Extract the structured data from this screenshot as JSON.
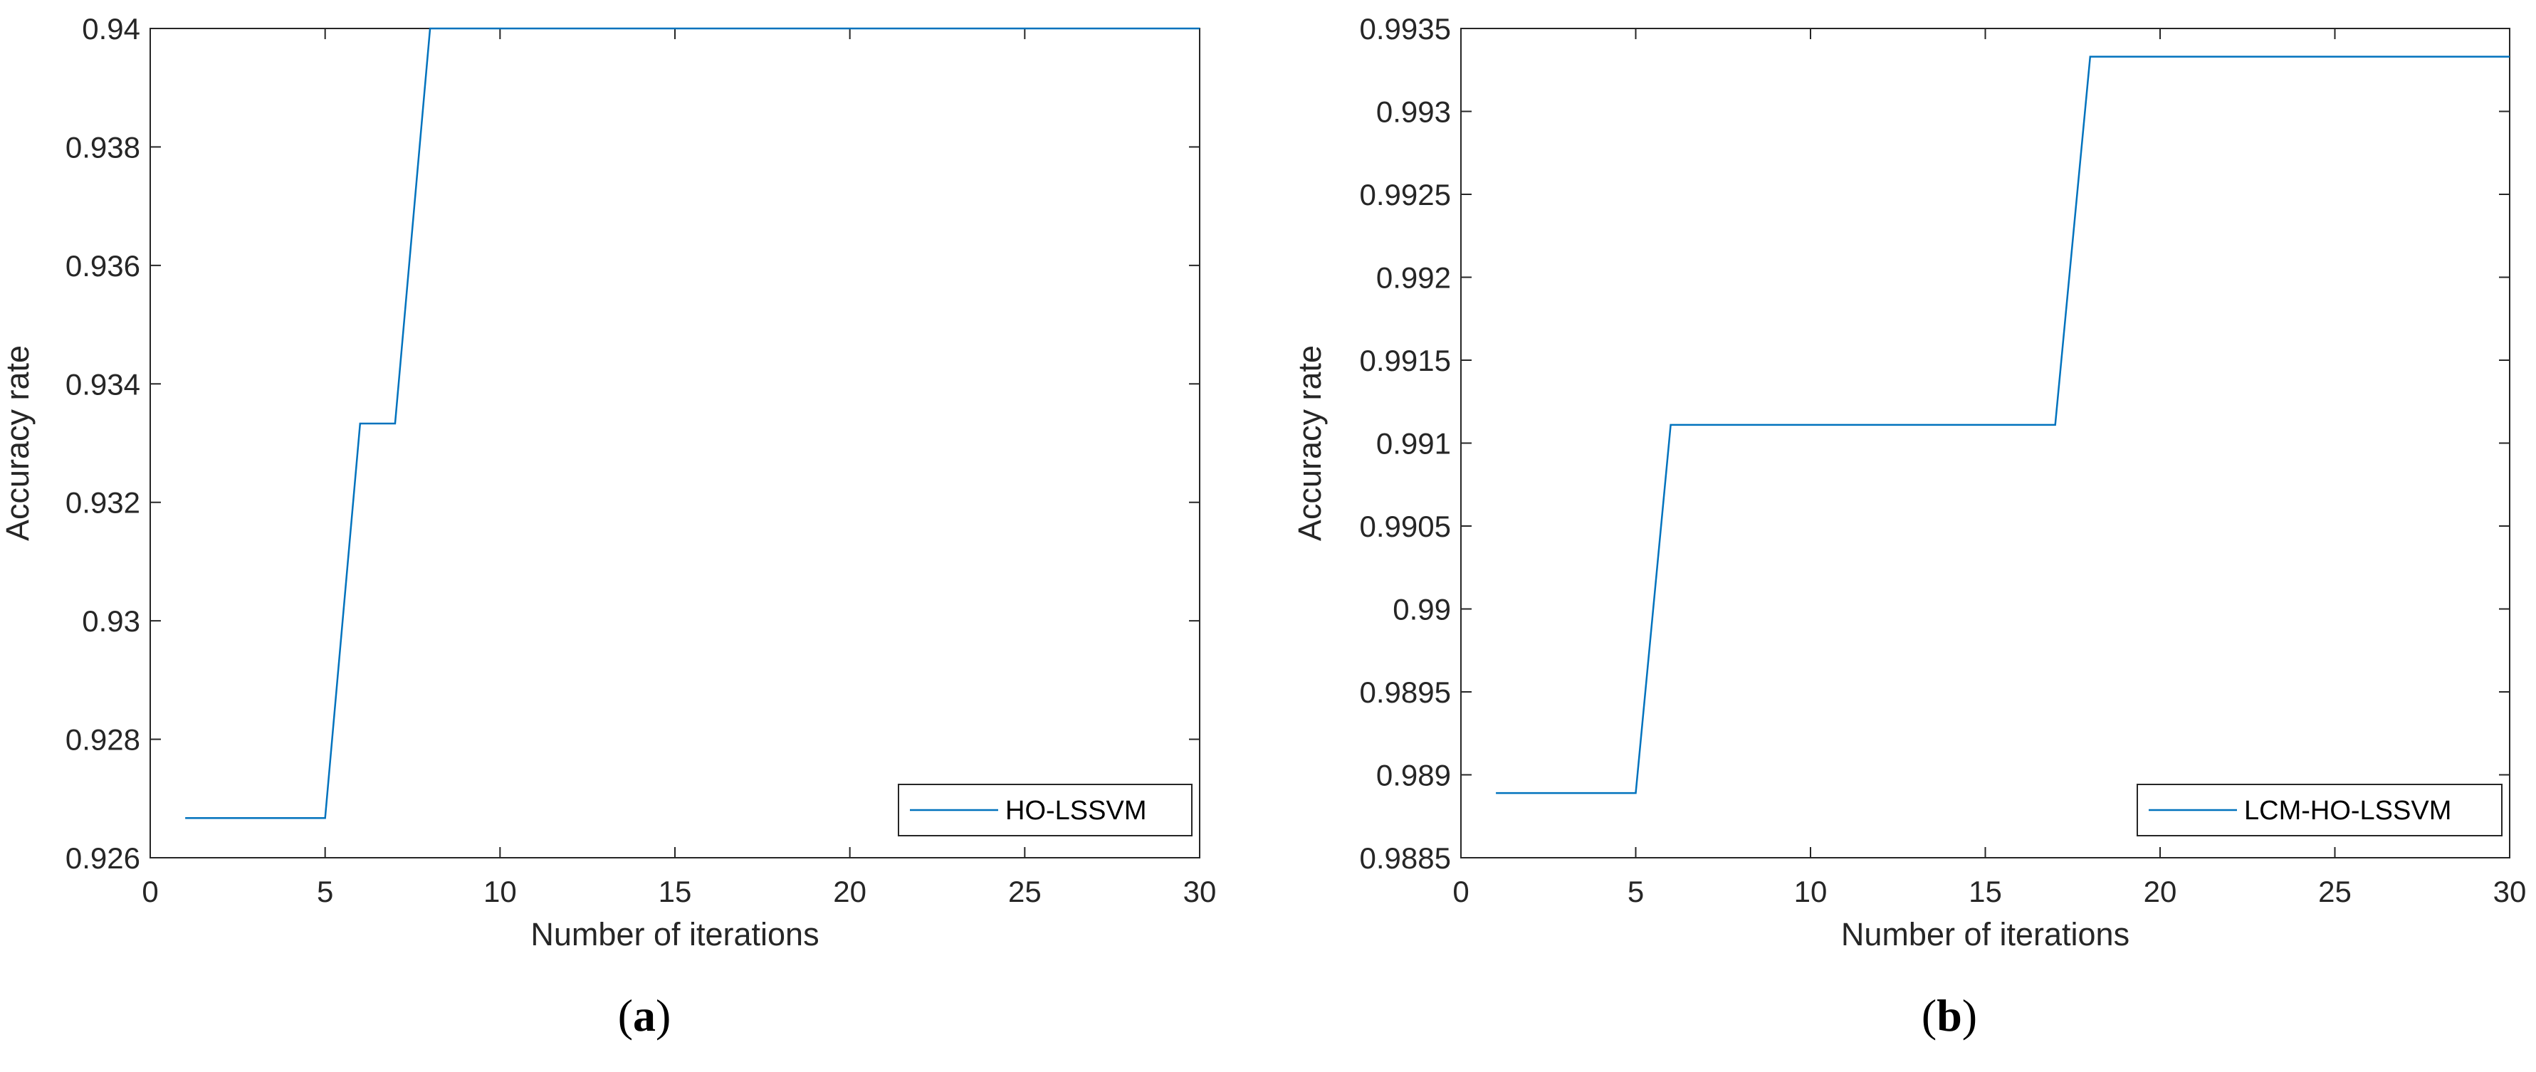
{
  "colors": {
    "series": "#0072BD",
    "axis": "#262626",
    "legend_border": "#262626"
  },
  "chart_data": [
    {
      "type": "line",
      "caption_letter": "a",
      "xlabel": "Number of iterations",
      "ylabel": "Accuracy rate",
      "xlim": [
        0,
        30
      ],
      "ylim": [
        0.926,
        0.94
      ],
      "x_ticks": [
        0,
        5,
        10,
        15,
        20,
        25,
        30
      ],
      "y_ticks": [
        0.926,
        0.928,
        0.93,
        0.932,
        0.934,
        0.936,
        0.938,
        0.94
      ],
      "y_tick_labels": [
        "0.926",
        "0.928",
        "0.93",
        "0.932",
        "0.934",
        "0.936",
        "0.938",
        "0.94"
      ],
      "legend_position": "bottom-right",
      "grid": false,
      "series": [
        {
          "name": "HO-LSSVM",
          "x": [
            1,
            2,
            3,
            4,
            5,
            6,
            7,
            8,
            9,
            10,
            11,
            12,
            13,
            14,
            15,
            16,
            17,
            18,
            19,
            20,
            21,
            22,
            23,
            24,
            25,
            26,
            27,
            28,
            29,
            30
          ],
          "y": [
            0.92667,
            0.92667,
            0.92667,
            0.92667,
            0.92667,
            0.93333,
            0.93333,
            0.94,
            0.94,
            0.94,
            0.94,
            0.94,
            0.94,
            0.94,
            0.94,
            0.94,
            0.94,
            0.94,
            0.94,
            0.94,
            0.94,
            0.94,
            0.94,
            0.94,
            0.94,
            0.94,
            0.94,
            0.94,
            0.94,
            0.94
          ]
        }
      ]
    },
    {
      "type": "line",
      "caption_letter": "b",
      "xlabel": "Number of iterations",
      "ylabel": "Accuracy rate",
      "xlim": [
        0,
        30
      ],
      "ylim": [
        0.9885,
        0.9935
      ],
      "x_ticks": [
        0,
        5,
        10,
        15,
        20,
        25,
        30
      ],
      "y_ticks": [
        0.9885,
        0.989,
        0.9895,
        0.99,
        0.9905,
        0.991,
        0.9915,
        0.992,
        0.9925,
        0.993,
        0.9935
      ],
      "y_tick_labels": [
        "0.9885",
        "0.989",
        "0.9895",
        "0.99",
        "0.9905",
        "0.991",
        "0.9915",
        "0.992",
        "0.9925",
        "0.993",
        "0.9935"
      ],
      "legend_position": "bottom-right",
      "grid": false,
      "series": [
        {
          "name": "LCM-HO-LSSVM",
          "x": [
            1,
            2,
            3,
            4,
            5,
            6,
            7,
            8,
            9,
            10,
            11,
            12,
            13,
            14,
            15,
            16,
            17,
            18,
            19,
            20,
            21,
            22,
            23,
            24,
            25,
            26,
            27,
            28,
            29,
            30
          ],
          "y": [
            0.98889,
            0.98889,
            0.98889,
            0.98889,
            0.98889,
            0.99111,
            0.99111,
            0.99111,
            0.99111,
            0.99111,
            0.99111,
            0.99111,
            0.99111,
            0.99111,
            0.99111,
            0.99111,
            0.99111,
            0.99333,
            0.99333,
            0.99333,
            0.99333,
            0.99333,
            0.99333,
            0.99333,
            0.99333,
            0.99333,
            0.99333,
            0.99333,
            0.99333,
            0.99333
          ]
        }
      ]
    }
  ]
}
